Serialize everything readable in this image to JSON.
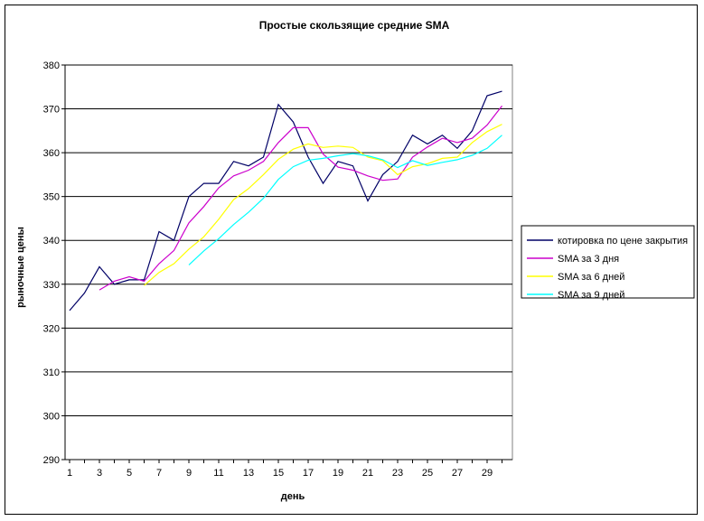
{
  "chart_data": {
    "type": "line",
    "title": "Простые скользящие средние SMA",
    "xlabel": "день",
    "ylabel": "рыночные цены",
    "ylim": [
      290,
      380
    ],
    "yticks": [
      290,
      300,
      310,
      320,
      330,
      340,
      350,
      360,
      370,
      380
    ],
    "xlim": [
      1,
      30
    ],
    "xticks": [
      1,
      3,
      5,
      7,
      9,
      11,
      13,
      15,
      17,
      19,
      21,
      23,
      25,
      27,
      29
    ],
    "grid": true,
    "legend_position": "right",
    "series": [
      {
        "name": "котировка по цене закрытия",
        "color": "#000066",
        "x": [
          1,
          2,
          3,
          4,
          5,
          6,
          7,
          8,
          9,
          10,
          11,
          12,
          13,
          14,
          15,
          16,
          17,
          18,
          19,
          20,
          21,
          22,
          23,
          24,
          25,
          26,
          27,
          28,
          29,
          30
        ],
        "y": [
          324,
          328,
          334,
          330,
          331,
          331,
          342,
          340,
          350,
          353,
          353,
          358,
          357,
          359,
          371,
          367,
          359,
          353,
          358,
          357,
          349,
          355,
          358,
          364,
          362,
          364,
          361,
          365,
          373,
          374
        ]
      },
      {
        "name": "SMA за 3 дня",
        "color": "#cc00cc",
        "x": [
          3,
          4,
          5,
          6,
          7,
          8,
          9,
          10,
          11,
          12,
          13,
          14,
          15,
          16,
          17,
          18,
          19,
          20,
          21,
          22,
          23,
          24,
          25,
          26,
          27,
          28,
          29,
          30
        ],
        "y": [
          328.7,
          330.7,
          331.7,
          330.7,
          334.7,
          337.7,
          344,
          347.7,
          352,
          354.7,
          356,
          358,
          362.3,
          365.7,
          365.7,
          359.7,
          356.7,
          356,
          354.7,
          353.7,
          354,
          359,
          361.3,
          363.3,
          362.3,
          363.3,
          366.3,
          370.7
        ]
      },
      {
        "name": "SMA за 6 дней",
        "color": "#ffff00",
        "x": [
          6,
          7,
          8,
          9,
          10,
          11,
          12,
          13,
          14,
          15,
          16,
          17,
          18,
          19,
          20,
          21,
          22,
          23,
          24,
          25,
          26,
          27,
          28,
          29,
          30
        ],
        "y": [
          329.7,
          332.7,
          334.7,
          338,
          340.8,
          344.8,
          349.3,
          351.8,
          355,
          358.5,
          360.8,
          362,
          361.2,
          361.5,
          361.2,
          359,
          358.2,
          355,
          356.8,
          357.5,
          358.7,
          359,
          362.3,
          364.8,
          366.5
        ]
      },
      {
        "name": "SMA за 9 дней",
        "color": "#00ffff",
        "x": [
          9,
          10,
          11,
          12,
          13,
          14,
          15,
          16,
          17,
          18,
          19,
          20,
          21,
          22,
          23,
          24,
          25,
          26,
          27,
          28,
          29,
          30
        ],
        "y": [
          334.4,
          337.6,
          340.4,
          343.6,
          346.4,
          349.6,
          353.9,
          356.8,
          358.3,
          358.7,
          359.3,
          359.8,
          359.3,
          358.4,
          356.6,
          358.2,
          357.1,
          357.8,
          358.4,
          359.4,
          361,
          364
        ]
      }
    ]
  }
}
